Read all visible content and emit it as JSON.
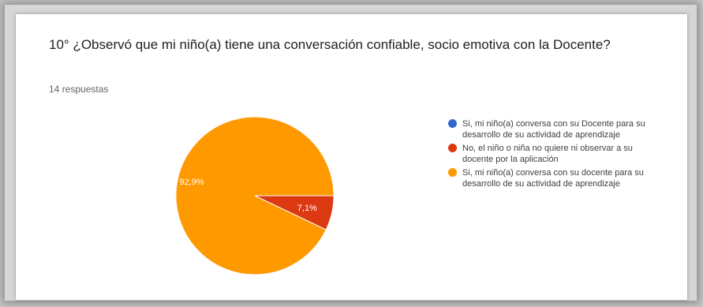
{
  "question": {
    "title": "10° ¿Observó que mi niño(a) tiene una conversación confiable, socio emotiva con la Docente?",
    "responses": "14 respuestas"
  },
  "chart_data": {
    "type": "pie",
    "title": "",
    "slices": [
      {
        "label": "Si, mi niño(a) conversa con su Docente para su desarrollo de su actividad de aprendizaje",
        "value": 0,
        "percent_label": "",
        "color": "#3366cc"
      },
      {
        "label": "No, el niño o niña no quiere ni observar a su docente por la aplicación",
        "value": 7.1,
        "percent_label": "7,1%",
        "color": "#dc3912"
      },
      {
        "label": "Si, mi niño(a) conversa con su docente para su desarrollo de su actividad de aprendizaje",
        "value": 92.9,
        "percent_label": "92,9%",
        "color": "#ff9900"
      }
    ],
    "legend_position": "right"
  }
}
